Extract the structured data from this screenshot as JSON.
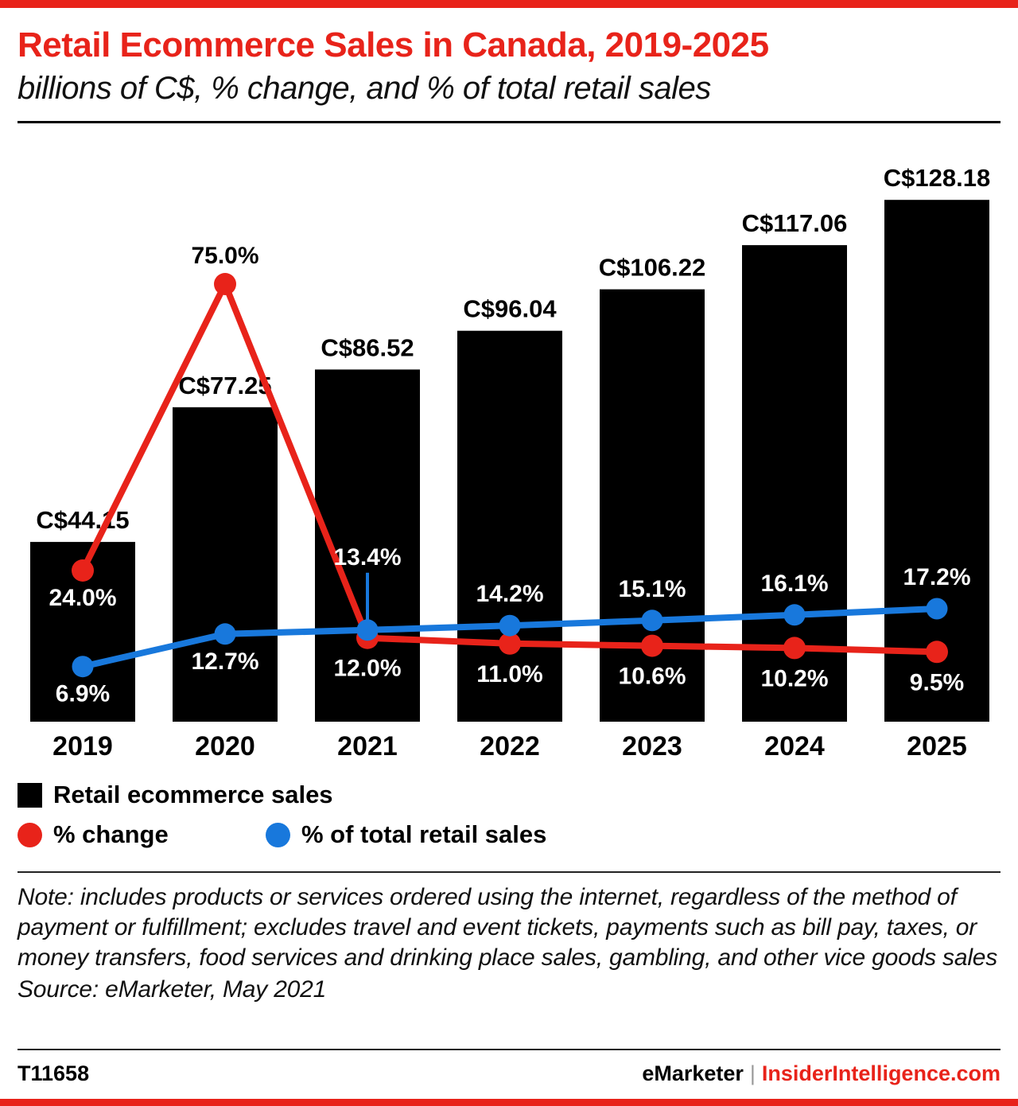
{
  "header": {
    "title": "Retail Ecommerce Sales in Canada, 2019-2025",
    "subtitle": "billions of C$, % change, and % of total retail sales"
  },
  "chart_data": {
    "type": "bar",
    "title": "Retail Ecommerce Sales in Canada, 2019-2025",
    "subtitle": "billions of C$, % change, and % of total retail sales",
    "categories": [
      "2019",
      "2020",
      "2021",
      "2022",
      "2023",
      "2024",
      "2025"
    ],
    "series": [
      {
        "name": "Retail ecommerce sales",
        "type": "bar",
        "unit": "billions of C$",
        "color": "#000000",
        "values": [
          44.15,
          77.25,
          86.52,
          96.04,
          106.22,
          117.06,
          128.18
        ],
        "labels": [
          "C$44.15",
          "C$77.25",
          "C$86.52",
          "C$96.04",
          "C$106.22",
          "C$117.06",
          "C$128.18"
        ]
      },
      {
        "name": "% change",
        "type": "line",
        "unit": "%",
        "color": "#e8231a",
        "values": [
          24.0,
          75.0,
          12.0,
          11.0,
          10.6,
          10.2,
          9.5
        ],
        "labels": [
          "24.0%",
          "75.0%",
          "12.0%",
          "11.0%",
          "10.6%",
          "10.2%",
          "9.5%"
        ]
      },
      {
        "name": "% of total retail sales",
        "type": "line",
        "unit": "%",
        "color": "#1878dc",
        "values": [
          6.9,
          12.7,
          13.4,
          14.2,
          15.1,
          16.1,
          17.2
        ],
        "labels": [
          "6.9%",
          "12.7%",
          "13.4%",
          "14.2%",
          "15.1%",
          "16.1%",
          "17.2%"
        ]
      }
    ],
    "legend_position": "bottom",
    "grid": false,
    "ylim_bars": [
      0,
      140
    ],
    "ylim_pct": [
      0,
      80
    ]
  },
  "legend": {
    "items": [
      {
        "label": "Retail ecommerce sales",
        "swatch": "square",
        "color": "#000000"
      },
      {
        "label": "% change",
        "swatch": "circle",
        "color": "#e8231a"
      },
      {
        "label": "% of total retail sales",
        "swatch": "circle",
        "color": "#1878dc"
      }
    ]
  },
  "note": "Note: includes products or services ordered using the internet, regardless of the method of payment or fulfillment; excludes travel and event tickets, payments such as bill pay, taxes, or money transfers, food services and drinking place sales, gambling, and other vice goods sales",
  "source": "Source: eMarketer, May 2021",
  "footer": {
    "chart_id": "T11658",
    "brand": "eMarketer",
    "separator": "|",
    "site": "InsiderIntelligence.com"
  },
  "colors": {
    "accent_red": "#e8231a",
    "line_blue": "#1878dc",
    "bar_black": "#000000"
  }
}
